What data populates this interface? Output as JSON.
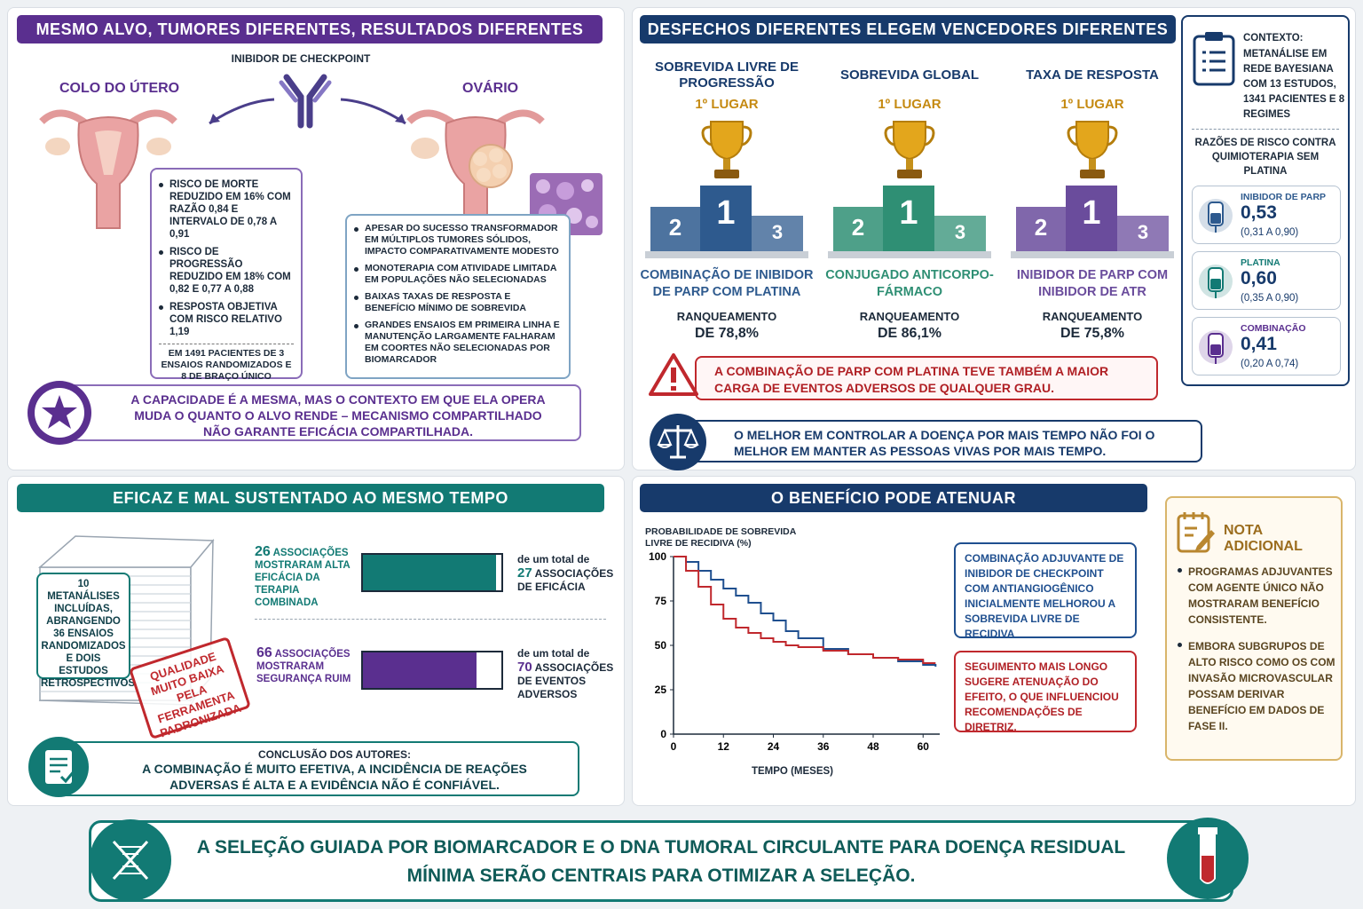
{
  "p1": {
    "title": "MESMO ALVO, TUMORES DIFERENTES, RESULTADOS DIFERENTES",
    "inhibitor_label": "INIBIDOR DE CHECKPOINT",
    "left_organ": "COLO DO ÚTERO",
    "right_organ": "OVÁRIO",
    "cervix_bullets": [
      "RISCO DE MORTE REDUZIDO EM 16% COM RAZÃO 0,84 E INTERVALO DE 0,78 A 0,91",
      "RISCO DE PROGRESSÃO REDUZIDO EM 18% COM 0,82 E 0,77 A 0,88",
      "RESPOSTA OBJETIVA COM RISCO RELATIVO 1,19"
    ],
    "cervix_note": "EM 1491 PACIENTES DE 3 ENSAIOS RANDOMIZADOS E 8 DE BRAÇO ÚNICO",
    "ovary_bullets": [
      "APESAR DO SUCESSO TRANSFORMADOR EM MÚLTIPLOS TUMORES SÓLIDOS, IMPACTO COMPARATIVAMENTE MODESTO",
      "MONOTERAPIA COM ATIVIDADE LIMITADA EM POPULAÇÕES NÃO SELECIONADAS",
      "BAIXAS TAXAS DE RESPOSTA E BENEFÍCIO MÍNIMO DE SOBREVIDA",
      "GRANDES ENSAIOS EM PRIMEIRA LINHA E MANUTENÇÃO LARGAMENTE FALHARAM EM COORTES NÃO SELECIONADAS POR BIOMARCADOR"
    ],
    "conclusion": "A CAPACIDADE É A MESMA, MAS O CONTEXTO EM QUE ELA OPERA MUDA O QUANTO O ALVO RENDE – MECANISMO COMPARTILHADO NÃO GARANTE EFICÁCIA COMPARTILHADA."
  },
  "p2": {
    "title": "DESFECHOS DIFERENTES ELEGEM VENCEDORES DIFERENTES",
    "columns": [
      {
        "outcome": "SOBREVIDA LIVRE DE PROGRESSÃO",
        "place": "1º LUGAR",
        "winner": "COMBINAÇÃO DE INIBIDOR DE PARP COM PLATINA",
        "rank_label": "RANQUEAMENTO",
        "rank_value": "DE 78,8%",
        "color": "#2e5a8e"
      },
      {
        "outcome": "SOBREVIDA GLOBAL",
        "place": "1º LUGAR",
        "winner": "CONJUGADO ANTICORPO-FÁRMACO",
        "rank_label": "RANQUEAMENTO",
        "rank_value": "DE 86,1%",
        "color": "#2f8f74"
      },
      {
        "outcome": "TAXA DE RESPOSTA",
        "place": "1º LUGAR",
        "winner": "INIBIDOR DE PARP COM INIBIDOR DE ATR",
        "rank_label": "RANQUEAMENTO",
        "rank_value": "DE 75,8%",
        "color": "#6a4c9c"
      }
    ],
    "podium_numbers": [
      "2",
      "1",
      "3"
    ],
    "warning": "A COMBINAÇÃO DE PARP COM PLATINA TEVE TAMBÉM A MAIOR CARGA DE EVENTOS ADVERSOS DE QUALQUER GRAU.",
    "balance_text": "O MELHOR EM CONTROLAR A DOENÇA POR MAIS TEMPO NÃO FOI O MELHOR EM MANTER AS PESSOAS VIVAS POR MAIS TEMPO.",
    "context": {
      "label": "CONTEXTO:",
      "text": "METANÁLISE EM REDE BAYESIANA COM 13 ESTUDOS, 1341 PACIENTES E 8 REGIMES",
      "hr_title": "RAZÕES DE RISCO CONTRA QUIMIOTERAPIA SEM PLATINA",
      "items": [
        {
          "name": "INIBIDOR DE PARP",
          "value": "0,53",
          "ci": "(0,31 A 0,90)"
        },
        {
          "name": "PLATINA",
          "value": "0,60",
          "ci": "(0,35 A 0,90)"
        },
        {
          "name": "COMBINAÇÃO",
          "value": "0,41",
          "ci": "(0,20 A 0,74)"
        }
      ]
    }
  },
  "p3": {
    "title": "EFICAZ E MAL SUSTENTADO AO MESMO TEMPO",
    "stack_text": "10 METANÁLISES INCLUÍDAS, ABRANGENDO 36 ENSAIOS RANDOMIZADOS E DOIS ESTUDOS RETROSPECTIVOS",
    "stamp": "QUALIDADE MUITO BAIXA PELA FERRAMENTA PADRONIZADA",
    "row1": {
      "num": "26",
      "word": "ASSOCIAÇÕES",
      "rest": "MOSTRARAM ALTA EFICÁCIA DA TERAPIA COMBINADA",
      "total_pre": "de um total de",
      "total_num": "27",
      "total_post": "ASSOCIAÇÕES DE EFICÁCIA",
      "fraction": 0.963
    },
    "row2": {
      "num": "66",
      "word": "ASSOCIAÇÕES",
      "rest": "MOSTRARAM SEGURANÇA RUIM",
      "total_pre": "de um total de",
      "total_num": "70",
      "total_post": "ASSOCIAÇÕES DE EVENTOS ADVERSOS",
      "fraction": 0.943
    },
    "conclusion_label": "CONCLUSÃO DOS AUTORES:",
    "conclusion": "A COMBINAÇÃO É MUITO EFETIVA, A INCIDÊNCIA DE REAÇÕES ADVERSAS É ALTA E A EVIDÊNCIA NÃO É CONFIÁVEL."
  },
  "p4": {
    "title": "O BENEFÍCIO PODE ATENUAR",
    "blue_box": "COMBINAÇÃO ADJUVANTE DE INIBIDOR DE CHECKPOINT COM ANTIANGIOGÊNICO INICIALMENTE MELHOROU A SOBREVIDA LIVRE DE RECIDIVA",
    "red_box": "SEGUIMENTO MAIS LONGO SUGERE ATENUAÇÃO DO EFEITO, O QUE INFLUENCIOU RECOMENDAÇÕES DE DIRETRIZ.",
    "note_title": "NOTA ADICIONAL",
    "note_bullets": [
      "PROGRAMAS ADJUVANTES COM AGENTE ÚNICO NÃO MOSTRARAM BENEFÍCIO CONSISTENTE.",
      "EMBORA SUBGRUPOS DE ALTO RISCO COMO OS COM INVASÃO MICROVASCULAR POSSAM DERIVAR BENEFÍCIO EM DADOS DE FASE II."
    ]
  },
  "chart_data": {
    "type": "line",
    "ylabel": "PROBABILIDADE DE SOBREVIDA LIVRE DE RECIDIVA (%)",
    "xlabel": "TEMPO (MESES)",
    "xlim": [
      0,
      64
    ],
    "ylim": [
      0,
      100
    ],
    "xticks": [
      0,
      12,
      24,
      36,
      48,
      60
    ],
    "yticks": [
      0,
      25,
      50,
      75,
      100
    ],
    "series": [
      {
        "color": "#1f4f8f",
        "x": [
          0,
          3,
          6,
          9,
          12,
          15,
          18,
          21,
          24,
          27,
          30,
          36,
          42,
          48,
          54,
          60,
          63
        ],
        "y": [
          100,
          97,
          92,
          87,
          82,
          78,
          74,
          68,
          64,
          58,
          54,
          48,
          45,
          43,
          41,
          39,
          38
        ]
      },
      {
        "color": "#c0282d",
        "x": [
          0,
          3,
          6,
          9,
          12,
          15,
          18,
          21,
          24,
          27,
          30,
          36,
          42,
          48,
          54,
          60,
          63
        ],
        "y": [
          100,
          92,
          83,
          73,
          65,
          60,
          57,
          54,
          52,
          50,
          49,
          47,
          45,
          43,
          42,
          40,
          40
        ]
      }
    ]
  },
  "footer": "A SELEÇÃO GUIADA POR BIOMARCADOR E O DNA TUMORAL CIRCULANTE PARA DOENÇA RESIDUAL MÍNIMA SERÃO CENTRAIS PARA OTIMIZAR A SELEÇÃO."
}
